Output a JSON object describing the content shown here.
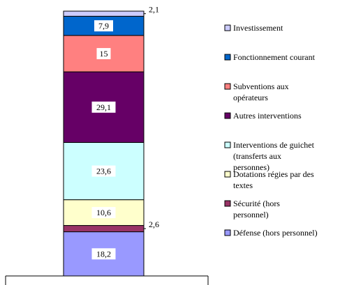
{
  "chart_data": {
    "type": "bar",
    "stacked": true,
    "orientation": "vertical",
    "grid": false,
    "legend_position": "right",
    "series": [
      {
        "name": "Défense (hors personnel)",
        "value": 18.2,
        "label": "18,2",
        "color": "#9999FF"
      },
      {
        "name": "Sécurité (hors personnel)",
        "value": 2.6,
        "label": "2,6",
        "color": "#993366",
        "label_outside": true
      },
      {
        "name": "Dotations régies par des textes",
        "value": 10.6,
        "label": "10,6",
        "color": "#FFFFCC"
      },
      {
        "name": "Interventions de guichet (transferts aux personnes)",
        "value": 23.6,
        "label": "23,6",
        "color": "#CCFFFF"
      },
      {
        "name": "Autres interventions",
        "value": 29.1,
        "label": "29,1",
        "color": "#660066"
      },
      {
        "name": "Subventions aux opérateurs",
        "value": 15,
        "label": "15",
        "color": "#FF8080"
      },
      {
        "name": "Fonctionnement courant",
        "value": 7.9,
        "label": "7,9",
        "color": "#0066CC"
      },
      {
        "name": "Investissement",
        "value": 2.1,
        "label": "2,1",
        "color": "#CCCCFF",
        "label_outside": true
      }
    ]
  }
}
